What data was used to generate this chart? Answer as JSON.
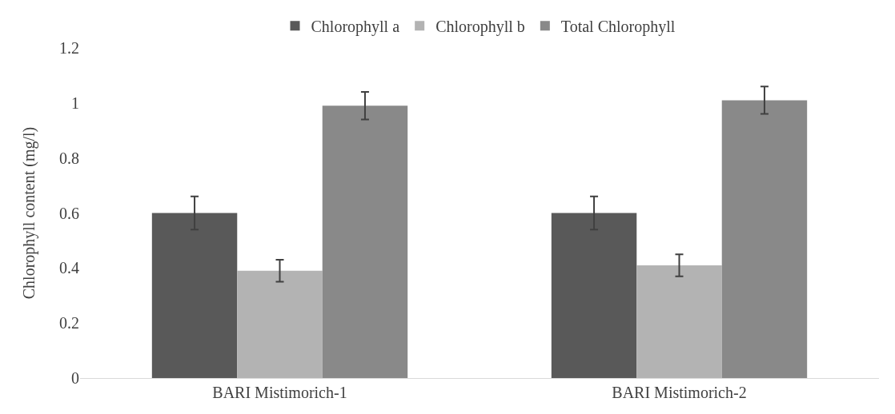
{
  "chart_data": {
    "type": "bar",
    "ylabel": "Chlorophyll content (mg/l)",
    "categories": [
      "BARI Mistimorich-1",
      "BARI Mistimorich-2"
    ],
    "series": [
      {
        "name": "Chlorophyll a",
        "color": "#595959",
        "values": [
          0.6,
          0.6
        ],
        "errors": [
          0.06,
          0.06
        ]
      },
      {
        "name": "Chlorophyll b",
        "color": "#b3b3b3",
        "values": [
          0.39,
          0.41
        ],
        "errors": [
          0.04,
          0.04
        ]
      },
      {
        "name": "Total Chlorophyll",
        "color": "#898989",
        "values": [
          0.99,
          1.01
        ],
        "errors": [
          0.05,
          0.05
        ]
      }
    ],
    "ylim": [
      0,
      1.2
    ],
    "yticks": [
      0,
      0.2,
      0.4,
      0.6,
      0.8,
      1,
      1.2
    ],
    "grid": false,
    "legend": "top"
  }
}
